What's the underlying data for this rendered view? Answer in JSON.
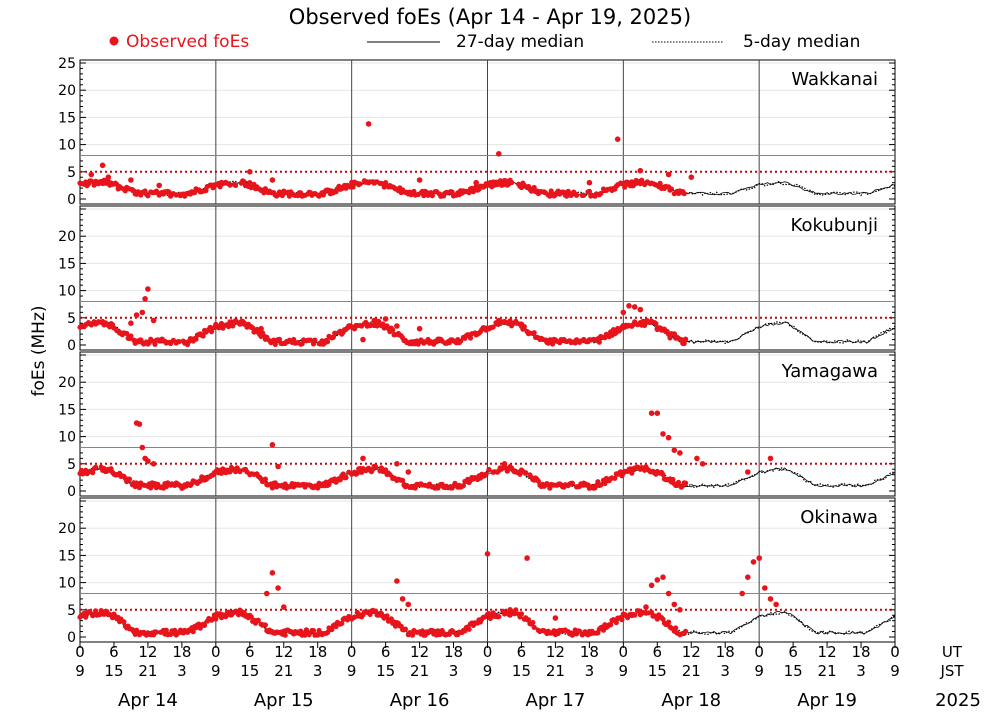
{
  "chart_data": {
    "type": "scatter",
    "title": "Observed foEs (Apr 14 - Apr 19, 2025)",
    "ylabel": "foEs (MHz)",
    "legend": {
      "placement": "top",
      "entries": [
        {
          "label": "Observed foEs",
          "style": "red-dot"
        },
        {
          "label": "27-day median",
          "style": "solid-line"
        },
        {
          "label": "5-day median",
          "style": "dotted-line"
        }
      ]
    },
    "x_range_hours": [
      0,
      144
    ],
    "ylim": [
      0,
      25
    ],
    "ytick_values": [
      0,
      5,
      10,
      15,
      20,
      25
    ],
    "ytick_labels_first": [
      "0",
      "5",
      "10",
      "15",
      "20",
      "25"
    ],
    "ytick_labels_rest": [
      "0",
      "5",
      "10",
      "15",
      "20",
      ""
    ],
    "reference_lines": [
      {
        "value": 5,
        "style": "dotted",
        "color": "#cc0000"
      },
      {
        "value": 8,
        "style": "solid",
        "color": "#e06060"
      }
    ],
    "x_tick_labels_ut": [
      "0",
      "6",
      "12",
      "18"
    ],
    "x_tick_labels_jst": [
      "9",
      "15",
      "21",
      "3"
    ],
    "x_final_ut": "0",
    "x_final_jst": "9",
    "ut_label": "UT",
    "jst_label": "JST",
    "days": [
      "Apr 14",
      "Apr 15",
      "Apr 16",
      "Apr 17",
      "Apr 18",
      "Apr 19"
    ],
    "year_label": "2025",
    "observed_end_hour": 107,
    "colors": {
      "observed": "#e8141c",
      "median": "#000000",
      "reference": "#cc0000"
    },
    "stations": [
      {
        "name": "Wakkanai",
        "day_level": 3,
        "night_level": 1,
        "outliers": [
          [
            2,
            4.5
          ],
          [
            4,
            6.2
          ],
          [
            5,
            4.0
          ],
          [
            9,
            3.5
          ],
          [
            14,
            2.5
          ],
          [
            30,
            5.0
          ],
          [
            34,
            3.5
          ],
          [
            51,
            13.8
          ],
          [
            60,
            3.5
          ],
          [
            70,
            3.0
          ],
          [
            74,
            8.3
          ],
          [
            90,
            3.0
          ],
          [
            95,
            11.0
          ],
          [
            99,
            5.2
          ],
          [
            104,
            4.5
          ],
          [
            108,
            4.0
          ]
        ]
      },
      {
        "name": "Kokubunji",
        "day_level": 4,
        "night_level": 0.6,
        "outliers": [
          [
            9,
            4.0
          ],
          [
            10,
            5.5
          ],
          [
            11,
            6.0
          ],
          [
            11.5,
            8.5
          ],
          [
            12,
            10.3
          ],
          [
            13,
            4.5
          ],
          [
            29,
            4.0
          ],
          [
            32,
            3.0
          ],
          [
            50,
            1.0
          ],
          [
            52,
            4.5
          ],
          [
            54,
            4.8
          ],
          [
            56,
            3.5
          ],
          [
            60,
            3.0
          ],
          [
            74,
            4.5
          ],
          [
            78,
            3.8
          ],
          [
            96,
            6.0
          ],
          [
            97,
            7.2
          ],
          [
            98,
            7.0
          ],
          [
            99,
            6.5
          ],
          [
            102,
            3.0
          ],
          [
            105,
            2.0
          ]
        ]
      },
      {
        "name": "Yamagawa",
        "day_level": 4,
        "night_level": 1,
        "outliers": [
          [
            10,
            12.5
          ],
          [
            10.5,
            12.3
          ],
          [
            11,
            8.0
          ],
          [
            11.5,
            6.0
          ],
          [
            12,
            5.5
          ],
          [
            13,
            5.0
          ],
          [
            34,
            8.5
          ],
          [
            35,
            4.5
          ],
          [
            50,
            6.0
          ],
          [
            52,
            4.5
          ],
          [
            56,
            5.0
          ],
          [
            58,
            3.5
          ],
          [
            75,
            5.0
          ],
          [
            101,
            14.3
          ],
          [
            102,
            14.3
          ],
          [
            103,
            10.5
          ],
          [
            104,
            9.8
          ],
          [
            105,
            7.5
          ],
          [
            106,
            7.0
          ],
          [
            109,
            6.0
          ],
          [
            110,
            5.0
          ],
          [
            118,
            3.5
          ],
          [
            122,
            6.0
          ]
        ]
      },
      {
        "name": "Okinawa",
        "day_level": 4.5,
        "night_level": 0.8,
        "outliers": [
          [
            33,
            8.0
          ],
          [
            34,
            11.8
          ],
          [
            35,
            9.0
          ],
          [
            36,
            5.5
          ],
          [
            56,
            10.3
          ],
          [
            57,
            7.0
          ],
          [
            58,
            6.0
          ],
          [
            72,
            15.3
          ],
          [
            76,
            5.0
          ],
          [
            79,
            14.5
          ],
          [
            84,
            3.5
          ],
          [
            100,
            5.5
          ],
          [
            101,
            9.5
          ],
          [
            102,
            10.5
          ],
          [
            103,
            11.0
          ],
          [
            104,
            8.0
          ],
          [
            105,
            6.0
          ],
          [
            106,
            5.0
          ],
          [
            117,
            8.0
          ],
          [
            118,
            11.0
          ],
          [
            119,
            13.8
          ],
          [
            120,
            14.5
          ],
          [
            121,
            9.0
          ],
          [
            122,
            7.0
          ],
          [
            123,
            6.0
          ]
        ]
      }
    ]
  }
}
